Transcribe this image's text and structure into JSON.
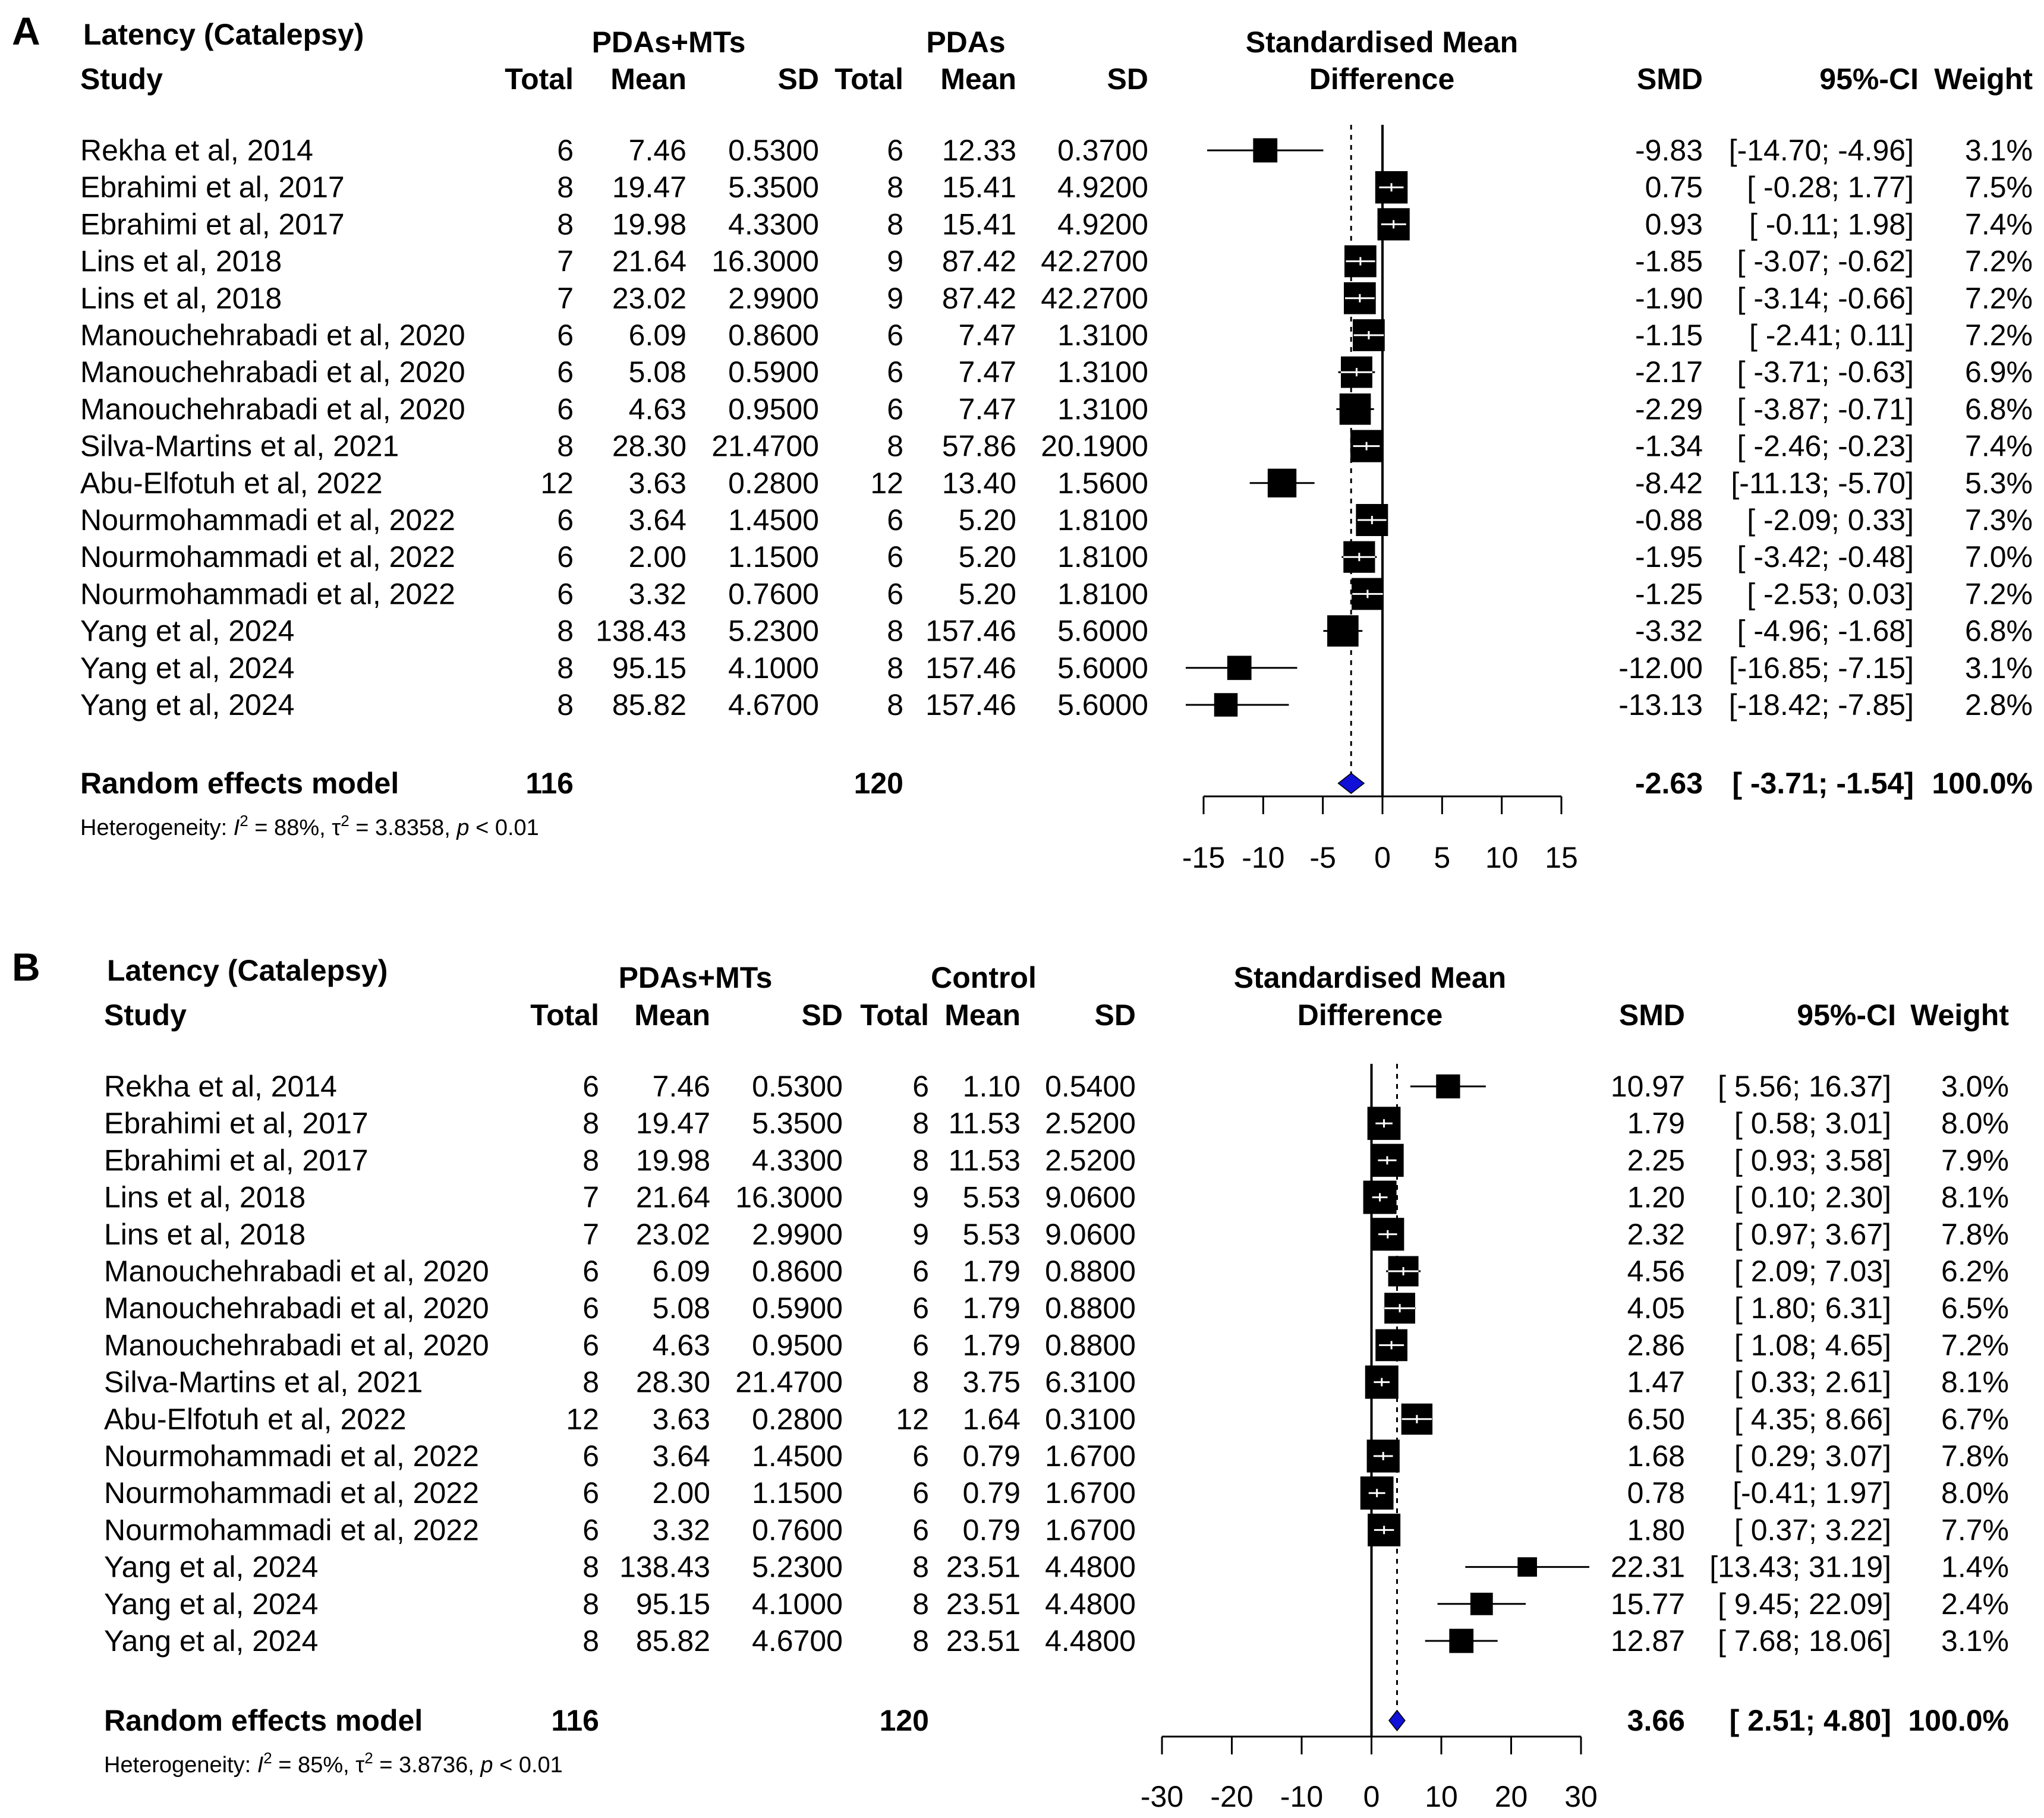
{
  "colors": {
    "diamond": "#1010d8",
    "marker": "#000000",
    "background": "#ffffff"
  },
  "chart_data": [
    {
      "panel": "A",
      "type": "forest",
      "title": "Latency (Catalepsy)",
      "headers": {
        "study": "Study",
        "exp_group": "PDAs+MTs",
        "ctrl_group": "PDAs",
        "effect_line1": "Standardised Mean",
        "effect_line2": "Difference",
        "total": "Total",
        "mean": "Mean",
        "sd": "SD",
        "smd": "SMD",
        "ci": "95%-CI",
        "weight": "Weight"
      },
      "xlim": [
        -15,
        15
      ],
      "ticks": [
        -15,
        -10,
        -5,
        0,
        5,
        10,
        15
      ],
      "studies": [
        {
          "study": "Rekha et al, 2014",
          "e_total": "6",
          "e_mean": "7.46",
          "e_sd": "0.5300",
          "c_total": "6",
          "c_mean": "12.33",
          "c_sd": "0.3700",
          "smd_text": "-9.83",
          "ci_text": "[-14.70; -4.96]",
          "weight_text": "3.1%",
          "smd": -9.83,
          "lo": -14.7,
          "hi": -4.96,
          "w": 3.1
        },
        {
          "study": "Ebrahimi et al, 2017",
          "e_total": "8",
          "e_mean": "19.47",
          "e_sd": "5.3500",
          "c_total": "8",
          "c_mean": "15.41",
          "c_sd": "4.9200",
          "smd_text": "0.75",
          "ci_text": "[ -0.28;  1.77]",
          "weight_text": "7.5%",
          "smd": 0.75,
          "lo": -0.28,
          "hi": 1.77,
          "w": 7.5
        },
        {
          "study": "Ebrahimi et al, 2017",
          "e_total": "8",
          "e_mean": "19.98",
          "e_sd": "4.3300",
          "c_total": "8",
          "c_mean": "15.41",
          "c_sd": "4.9200",
          "smd_text": "0.93",
          "ci_text": "[ -0.11;  1.98]",
          "weight_text": "7.4%",
          "smd": 0.93,
          "lo": -0.11,
          "hi": 1.98,
          "w": 7.4
        },
        {
          "study": "Lins et al, 2018",
          "e_total": "7",
          "e_mean": "21.64",
          "e_sd": "16.3000",
          "c_total": "9",
          "c_mean": "87.42",
          "c_sd": "42.2700",
          "smd_text": "-1.85",
          "ci_text": "[ -3.07; -0.62]",
          "weight_text": "7.2%",
          "smd": -1.85,
          "lo": -3.07,
          "hi": -0.62,
          "w": 7.2
        },
        {
          "study": "Lins et al, 2018",
          "e_total": "7",
          "e_mean": "23.02",
          "e_sd": "2.9900",
          "c_total": "9",
          "c_mean": "87.42",
          "c_sd": "42.2700",
          "smd_text": "-1.90",
          "ci_text": "[ -3.14; -0.66]",
          "weight_text": "7.2%",
          "smd": -1.9,
          "lo": -3.14,
          "hi": -0.66,
          "w": 7.2
        },
        {
          "study": "Manouchehrabadi et al, 2020",
          "e_total": "6",
          "e_mean": "6.09",
          "e_sd": "0.8600",
          "c_total": "6",
          "c_mean": "7.47",
          "c_sd": "1.3100",
          "smd_text": "-1.15",
          "ci_text": "[ -2.41;  0.11]",
          "weight_text": "7.2%",
          "smd": -1.15,
          "lo": -2.41,
          "hi": 0.11,
          "w": 7.2
        },
        {
          "study": "Manouchehrabadi et al, 2020",
          "e_total": "6",
          "e_mean": "5.08",
          "e_sd": "0.5900",
          "c_total": "6",
          "c_mean": "7.47",
          "c_sd": "1.3100",
          "smd_text": "-2.17",
          "ci_text": "[ -3.71; -0.63]",
          "weight_text": "6.9%",
          "smd": -2.17,
          "lo": -3.71,
          "hi": -0.63,
          "w": 6.9
        },
        {
          "study": "Manouchehrabadi et al, 2020",
          "e_total": "6",
          "e_mean": "4.63",
          "e_sd": "0.9500",
          "c_total": "6",
          "c_mean": "7.47",
          "c_sd": "1.3100",
          "smd_text": "-2.29",
          "ci_text": "[ -3.87; -0.71]",
          "weight_text": "6.8%",
          "smd": -2.29,
          "lo": -3.87,
          "hi": -0.71,
          "w": 6.8
        },
        {
          "study": "Silva-Martins et al, 2021",
          "e_total": "8",
          "e_mean": "28.30",
          "e_sd": "21.4700",
          "c_total": "8",
          "c_mean": "57.86",
          "c_sd": "20.1900",
          "smd_text": "-1.34",
          "ci_text": "[ -2.46; -0.23]",
          "weight_text": "7.4%",
          "smd": -1.34,
          "lo": -2.46,
          "hi": -0.23,
          "w": 7.4
        },
        {
          "study": "Abu-Elfotuh et al, 2022",
          "e_total": "12",
          "e_mean": "3.63",
          "e_sd": "0.2800",
          "c_total": "12",
          "c_mean": "13.40",
          "c_sd": "1.5600",
          "smd_text": "-8.42",
          "ci_text": "[-11.13; -5.70]",
          "weight_text": "5.3%",
          "smd": -8.42,
          "lo": -11.13,
          "hi": -5.7,
          "w": 5.3
        },
        {
          "study": "Nourmohammadi et al, 2022",
          "e_total": "6",
          "e_mean": "3.64",
          "e_sd": "1.4500",
          "c_total": "6",
          "c_mean": "5.20",
          "c_sd": "1.8100",
          "smd_text": "-0.88",
          "ci_text": "[ -2.09;  0.33]",
          "weight_text": "7.3%",
          "smd": -0.88,
          "lo": -2.09,
          "hi": 0.33,
          "w": 7.3
        },
        {
          "study": "Nourmohammadi et al, 2022",
          "e_total": "6",
          "e_mean": "2.00",
          "e_sd": "1.1500",
          "c_total": "6",
          "c_mean": "5.20",
          "c_sd": "1.8100",
          "smd_text": "-1.95",
          "ci_text": "[ -3.42; -0.48]",
          "weight_text": "7.0%",
          "smd": -1.95,
          "lo": -3.42,
          "hi": -0.48,
          "w": 7.0
        },
        {
          "study": "Nourmohammadi et al, 2022",
          "e_total": "6",
          "e_mean": "3.32",
          "e_sd": "0.7600",
          "c_total": "6",
          "c_mean": "5.20",
          "c_sd": "1.8100",
          "smd_text": "-1.25",
          "ci_text": "[ -2.53;  0.03]",
          "weight_text": "7.2%",
          "smd": -1.25,
          "lo": -2.53,
          "hi": 0.03,
          "w": 7.2
        },
        {
          "study": "Yang et al, 2024",
          "e_total": "8",
          "e_mean": "138.43",
          "e_sd": "5.2300",
          "c_total": "8",
          "c_mean": "157.46",
          "c_sd": "5.6000",
          "smd_text": "-3.32",
          "ci_text": "[ -4.96; -1.68]",
          "weight_text": "6.8%",
          "smd": -3.32,
          "lo": -4.96,
          "hi": -1.68,
          "w": 6.8
        },
        {
          "study": "Yang et al, 2024",
          "e_total": "8",
          "e_mean": "95.15",
          "e_sd": "4.1000",
          "c_total": "8",
          "c_mean": "157.46",
          "c_sd": "5.6000",
          "smd_text": "-12.00",
          "ci_text": "[-16.85; -7.15]",
          "weight_text": "3.1%",
          "smd": -12.0,
          "lo": -16.85,
          "hi": -7.15,
          "w": 3.1
        },
        {
          "study": "Yang et al, 2024",
          "e_total": "8",
          "e_mean": "85.82",
          "e_sd": "4.6700",
          "c_total": "8",
          "c_mean": "157.46",
          "c_sd": "5.6000",
          "smd_text": "-13.13",
          "ci_text": "[-18.42; -7.85]",
          "weight_text": "2.8%",
          "smd": -13.13,
          "lo": -18.42,
          "hi": -7.85,
          "w": 2.8
        }
      ],
      "summary": {
        "label": "Random effects model",
        "e_total": "116",
        "c_total": "120",
        "smd_text": "-2.63",
        "ci_text": "[ -3.71; -1.54]",
        "weight_text": "100.0%",
        "smd": -2.63,
        "lo": -3.71,
        "hi": -1.54
      },
      "heterogeneity": {
        "prefix": "Heterogeneity: ",
        "i2_symbol": "I",
        "i2_value": " = 88%, ",
        "tau_symbol": "τ",
        "tau_value": " = 3.8358, ",
        "p_symbol": "p",
        "p_value": " < 0.01"
      }
    },
    {
      "panel": "B",
      "type": "forest",
      "title": "Latency (Catalepsy)",
      "headers": {
        "study": "Study",
        "exp_group": "PDAs+MTs",
        "ctrl_group": "Control",
        "effect_line1": "Standardised Mean",
        "effect_line2": "Difference",
        "total": "Total",
        "mean": "Mean",
        "sd": "SD",
        "smd": "SMD",
        "ci": "95%-CI",
        "weight": "Weight"
      },
      "xlim": [
        -30,
        30
      ],
      "ticks": [
        -30,
        -20,
        -10,
        0,
        10,
        20,
        30
      ],
      "studies": [
        {
          "study": "Rekha et al, 2014",
          "e_total": "6",
          "e_mean": "7.46",
          "e_sd": "0.5300",
          "c_total": "6",
          "c_mean": "1.10",
          "c_sd": "0.5400",
          "smd_text": "10.97",
          "ci_text": "[ 5.56; 16.37]",
          "weight_text": "3.0%",
          "smd": 10.97,
          "lo": 5.56,
          "hi": 16.37,
          "w": 3.0
        },
        {
          "study": "Ebrahimi et al, 2017",
          "e_total": "8",
          "e_mean": "19.47",
          "e_sd": "5.3500",
          "c_total": "8",
          "c_mean": "11.53",
          "c_sd": "2.5200",
          "smd_text": "1.79",
          "ci_text": "[ 0.58;  3.01]",
          "weight_text": "8.0%",
          "smd": 1.79,
          "lo": 0.58,
          "hi": 3.01,
          "w": 8.0
        },
        {
          "study": "Ebrahimi et al, 2017",
          "e_total": "8",
          "e_mean": "19.98",
          "e_sd": "4.3300",
          "c_total": "8",
          "c_mean": "11.53",
          "c_sd": "2.5200",
          "smd_text": "2.25",
          "ci_text": "[ 0.93;  3.58]",
          "weight_text": "7.9%",
          "smd": 2.25,
          "lo": 0.93,
          "hi": 3.58,
          "w": 7.9
        },
        {
          "study": "Lins et al, 2018",
          "e_total": "7",
          "e_mean": "21.64",
          "e_sd": "16.3000",
          "c_total": "9",
          "c_mean": "5.53",
          "c_sd": "9.0600",
          "smd_text": "1.20",
          "ci_text": "[ 0.10;  2.30]",
          "weight_text": "8.1%",
          "smd": 1.2,
          "lo": 0.1,
          "hi": 2.3,
          "w": 8.1
        },
        {
          "study": "Lins et al, 2018",
          "e_total": "7",
          "e_mean": "23.02",
          "e_sd": "2.9900",
          "c_total": "9",
          "c_mean": "5.53",
          "c_sd": "9.0600",
          "smd_text": "2.32",
          "ci_text": "[ 0.97;  3.67]",
          "weight_text": "7.8%",
          "smd": 2.32,
          "lo": 0.97,
          "hi": 3.67,
          "w": 7.8
        },
        {
          "study": "Manouchehrabadi et al, 2020",
          "e_total": "6",
          "e_mean": "6.09",
          "e_sd": "0.8600",
          "c_total": "6",
          "c_mean": "1.79",
          "c_sd": "0.8800",
          "smd_text": "4.56",
          "ci_text": "[ 2.09;  7.03]",
          "weight_text": "6.2%",
          "smd": 4.56,
          "lo": 2.09,
          "hi": 7.03,
          "w": 6.2
        },
        {
          "study": "Manouchehrabadi et al, 2020",
          "e_total": "6",
          "e_mean": "5.08",
          "e_sd": "0.5900",
          "c_total": "6",
          "c_mean": "1.79",
          "c_sd": "0.8800",
          "smd_text": "4.05",
          "ci_text": "[ 1.80;  6.31]",
          "weight_text": "6.5%",
          "smd": 4.05,
          "lo": 1.8,
          "hi": 6.31,
          "w": 6.5
        },
        {
          "study": "Manouchehrabadi et al, 2020",
          "e_total": "6",
          "e_mean": "4.63",
          "e_sd": "0.9500",
          "c_total": "6",
          "c_mean": "1.79",
          "c_sd": "0.8800",
          "smd_text": "2.86",
          "ci_text": "[ 1.08;  4.65]",
          "weight_text": "7.2%",
          "smd": 2.86,
          "lo": 1.08,
          "hi": 4.65,
          "w": 7.2
        },
        {
          "study": "Silva-Martins et al, 2021",
          "e_total": "8",
          "e_mean": "28.30",
          "e_sd": "21.4700",
          "c_total": "8",
          "c_mean": "3.75",
          "c_sd": "6.3100",
          "smd_text": "1.47",
          "ci_text": "[ 0.33;  2.61]",
          "weight_text": "8.1%",
          "smd": 1.47,
          "lo": 0.33,
          "hi": 2.61,
          "w": 8.1
        },
        {
          "study": "Abu-Elfotuh et al, 2022",
          "e_total": "12",
          "e_mean": "3.63",
          "e_sd": "0.2800",
          "c_total": "12",
          "c_mean": "1.64",
          "c_sd": "0.3100",
          "smd_text": "6.50",
          "ci_text": "[ 4.35;  8.66]",
          "weight_text": "6.7%",
          "smd": 6.5,
          "lo": 4.35,
          "hi": 8.66,
          "w": 6.7
        },
        {
          "study": "Nourmohammadi et al, 2022",
          "e_total": "6",
          "e_mean": "3.64",
          "e_sd": "1.4500",
          "c_total": "6",
          "c_mean": "0.79",
          "c_sd": "1.6700",
          "smd_text": "1.68",
          "ci_text": "[ 0.29;  3.07]",
          "weight_text": "7.8%",
          "smd": 1.68,
          "lo": 0.29,
          "hi": 3.07,
          "w": 7.8
        },
        {
          "study": "Nourmohammadi et al, 2022",
          "e_total": "6",
          "e_mean": "2.00",
          "e_sd": "1.1500",
          "c_total": "6",
          "c_mean": "0.79",
          "c_sd": "1.6700",
          "smd_text": "0.78",
          "ci_text": "[-0.41;  1.97]",
          "weight_text": "8.0%",
          "smd": 0.78,
          "lo": -0.41,
          "hi": 1.97,
          "w": 8.0
        },
        {
          "study": "Nourmohammadi et al, 2022",
          "e_total": "6",
          "e_mean": "3.32",
          "e_sd": "0.7600",
          "c_total": "6",
          "c_mean": "0.79",
          "c_sd": "1.6700",
          "smd_text": "1.80",
          "ci_text": "[ 0.37;  3.22]",
          "weight_text": "7.7%",
          "smd": 1.8,
          "lo": 0.37,
          "hi": 3.22,
          "w": 7.7
        },
        {
          "study": "Yang et al, 2024",
          "e_total": "8",
          "e_mean": "138.43",
          "e_sd": "5.2300",
          "c_total": "8",
          "c_mean": "23.51",
          "c_sd": "4.4800",
          "smd_text": "22.31",
          "ci_text": "[13.43; 31.19]",
          "weight_text": "1.4%",
          "smd": 22.31,
          "lo": 13.43,
          "hi": 31.19,
          "w": 1.4
        },
        {
          "study": "Yang et al, 2024",
          "e_total": "8",
          "e_mean": "95.15",
          "e_sd": "4.1000",
          "c_total": "8",
          "c_mean": "23.51",
          "c_sd": "4.4800",
          "smd_text": "15.77",
          "ci_text": "[ 9.45; 22.09]",
          "weight_text": "2.4%",
          "smd": 15.77,
          "lo": 9.45,
          "hi": 22.09,
          "w": 2.4
        },
        {
          "study": "Yang et al, 2024",
          "e_total": "8",
          "e_mean": "85.82",
          "e_sd": "4.6700",
          "c_total": "8",
          "c_mean": "23.51",
          "c_sd": "4.4800",
          "smd_text": "12.87",
          "ci_text": "[ 7.68; 18.06]",
          "weight_text": "3.1%",
          "smd": 12.87,
          "lo": 7.68,
          "hi": 18.06,
          "w": 3.1
        }
      ],
      "summary": {
        "label": "Random effects model",
        "e_total": "116",
        "c_total": "120",
        "smd_text": "3.66",
        "ci_text": "[ 2.51;  4.80]",
        "weight_text": "100.0%",
        "smd": 3.66,
        "lo": 2.51,
        "hi": 4.8
      },
      "heterogeneity": {
        "prefix": "Heterogeneity: ",
        "i2_symbol": "I",
        "i2_value": " = 85%, ",
        "tau_symbol": "τ",
        "tau_value": " = 3.8736, ",
        "p_symbol": "p",
        "p_value": " < 0.01"
      }
    }
  ]
}
